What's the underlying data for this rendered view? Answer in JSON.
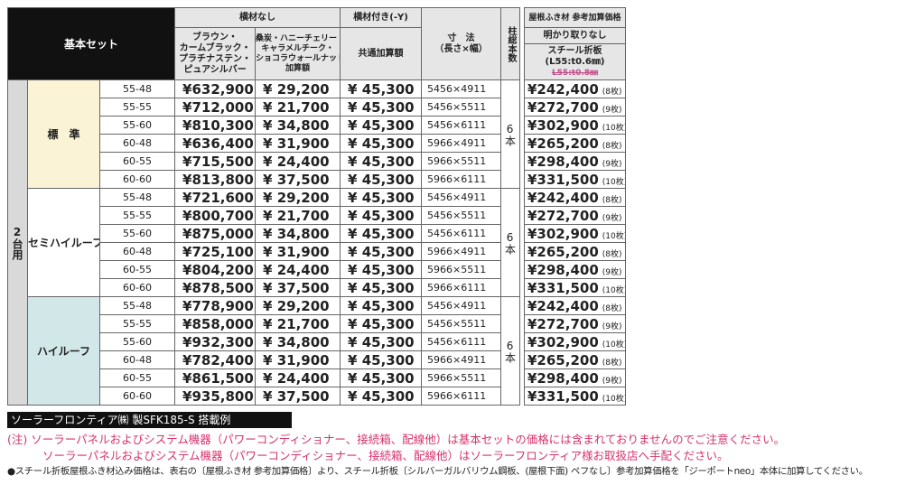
{
  "header": {
    "basic_set": "基本セット",
    "no_bar": "横材なし",
    "with_bar": "横材付き(-Y)",
    "col_base": [
      "ブラウン・",
      "カームブラック・",
      "プラチナステン・",
      "ピュアシルバー"
    ],
    "col_add": [
      "桑炭・ハニーチェリー・",
      "キャラメルチーク・",
      "ショコラウォールナット",
      "加算額"
    ],
    "col_common": "共通加算額",
    "col_dims": [
      "寸　法",
      "（長さ×幅）"
    ],
    "col_posts": "柱総本数",
    "roof_title": "屋根ふき材 参考加算価格",
    "roof_sub": "明かり取りなし",
    "roof_material": "スチール折板",
    "roof_spec": "(L55:t0.6㎜)",
    "roof_spec_struck": "L55:t0.8㎜"
  },
  "unit_label": "2台用",
  "groups": [
    {
      "name": "標　準",
      "posts": "6本",
      "rows": [
        [
          "55-48",
          "¥632,900",
          "¥ 29,200",
          "¥ 45,300",
          "5456×4911",
          "¥242,400",
          "(8枚)"
        ],
        [
          "55-55",
          "¥712,000",
          "¥ 21,700",
          "¥ 45,300",
          "5456×5511",
          "¥272,700",
          "(9枚)"
        ],
        [
          "55-60",
          "¥810,300",
          "¥ 34,800",
          "¥ 45,300",
          "5456×6111",
          "¥302,900",
          "(10枚)"
        ],
        [
          "60-48",
          "¥636,400",
          "¥ 31,900",
          "¥ 45,300",
          "5966×4911",
          "¥265,200",
          "(8枚)"
        ],
        [
          "60-55",
          "¥715,500",
          "¥ 24,400",
          "¥ 45,300",
          "5966×5511",
          "¥298,400",
          "(9枚)"
        ],
        [
          "60-60",
          "¥813,800",
          "¥ 37,500",
          "¥ 45,300",
          "5966×6111",
          "¥331,500",
          "(10枚)"
        ]
      ]
    },
    {
      "name": "セミハイルーフ",
      "posts": "6本",
      "rows": [
        [
          "55-48",
          "¥721,600",
          "¥ 29,200",
          "¥ 45,300",
          "5456×4911",
          "¥242,400",
          "(8枚)"
        ],
        [
          "55-55",
          "¥800,700",
          "¥ 21,700",
          "¥ 45,300",
          "5456×5511",
          "¥272,700",
          "(9枚)"
        ],
        [
          "55-60",
          "¥875,000",
          "¥ 34,800",
          "¥ 45,300",
          "5456×6111",
          "¥302,900",
          "(10枚)"
        ],
        [
          "60-48",
          "¥725,100",
          "¥ 31,900",
          "¥ 45,300",
          "5966×4911",
          "¥265,200",
          "(8枚)"
        ],
        [
          "60-55",
          "¥804,200",
          "¥ 24,400",
          "¥ 45,300",
          "5966×5511",
          "¥298,400",
          "(9枚)"
        ],
        [
          "60-60",
          "¥878,500",
          "¥ 37,500",
          "¥ 45,300",
          "5966×6111",
          "¥331,500",
          "(10枚)"
        ]
      ]
    },
    {
      "name": "ハイルーフ",
      "posts": "6本",
      "rows": [
        [
          "55-48",
          "¥778,900",
          "¥ 29,200",
          "¥ 45,300",
          "5456×4911",
          "¥242,400",
          "(8枚)"
        ],
        [
          "55-55",
          "¥858,000",
          "¥ 21,700",
          "¥ 45,300",
          "5456×5511",
          "¥272,700",
          "(9枚)"
        ],
        [
          "55-60",
          "¥932,300",
          "¥ 34,800",
          "¥ 45,300",
          "5456×6111",
          "¥302,900",
          "(10枚)"
        ],
        [
          "60-48",
          "¥782,400",
          "¥ 31,900",
          "¥ 45,300",
          "5966×4911",
          "¥265,200",
          "(8枚)"
        ],
        [
          "60-55",
          "¥861,500",
          "¥ 24,400",
          "¥ 45,300",
          "5966×5511",
          "¥298,400",
          "(9枚)"
        ],
        [
          "60-60",
          "¥935,800",
          "¥ 37,500",
          "¥ 45,300",
          "5966×6111",
          "¥331,500",
          "(10枚)"
        ]
      ]
    }
  ],
  "footer": {
    "example": "ソーラーフロンティア㈱ 製SFK185-S 搭載例",
    "note1": "(注) ソーラーパネルおよびシステム機器（パワーコンディショナー、接続箱、配線他）は基本セットの価格には含まれておりませんのでご注意ください。",
    "note2": "ソーラーパネルおよびシステム機器（パワーコンディショナー、接続箱、配線他）はソーラーフロンティア様お取扱店へ手配ください。",
    "note3": "●スチール折板屋根ふき材込み価格は、表右の〔屋根ふき材 参考加算価格〕より、スチール折板〔シルバーガルバリウム鋼板、(屋根下面) ペフなし〕参考加算価格を「ジーポートneo」本体に加算してください。"
  }
}
